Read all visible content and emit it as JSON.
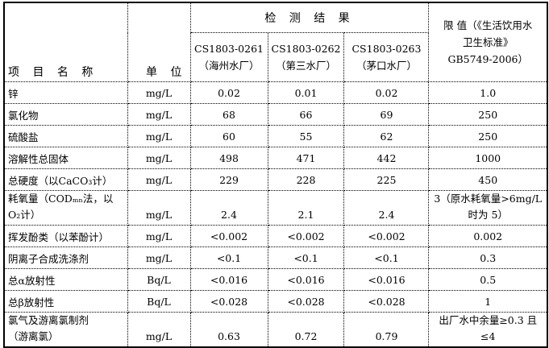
{
  "header": {
    "item": "项 目 名 称",
    "unit": "单  位",
    "results": "检 测 结 果",
    "samples": [
      {
        "code": "CS1803-0261",
        "plant": "（海州水厂）"
      },
      {
        "code": "CS1803-0262",
        "plant": "（第三水厂）"
      },
      {
        "code": "CS1803-0263",
        "plant": "（茅口水厂）"
      }
    ],
    "limit": [
      "限   值（《生活饮用水",
      "卫生标准》",
      "GB5749-2006）"
    ]
  },
  "rows": [
    {
      "name": [
        "锌"
      ],
      "unit": "mg/L",
      "values": [
        "0.02",
        "0.01",
        "0.02"
      ],
      "limit": [
        "1.0"
      ]
    },
    {
      "name": [
        "氯化物"
      ],
      "unit": "mg/L",
      "values": [
        "68",
        "66",
        "69"
      ],
      "limit": [
        "250"
      ]
    },
    {
      "name": [
        "硫酸盐"
      ],
      "unit": "mg/L",
      "values": [
        "60",
        "55",
        "62"
      ],
      "limit": [
        "250"
      ]
    },
    {
      "name": [
        "溶解性总固体"
      ],
      "unit": "mg/L",
      "values": [
        "498",
        "471",
        "442"
      ],
      "limit": [
        "1000"
      ]
    },
    {
      "name": [
        "总硬度（以CaCO₃计）"
      ],
      "unit": "mg/L",
      "values": [
        "229",
        "228",
        "225"
      ],
      "limit": [
        "450"
      ]
    },
    {
      "name": [
        "耗氧量（CODₘₙ法，以",
        "O₂计）"
      ],
      "unit": "mg/L",
      "values": [
        "2.4",
        "2.1",
        "2.4"
      ],
      "limit": [
        "3（原水耗氧量>6mg/L",
        "时为 5）"
      ]
    },
    {
      "name": [
        "挥发酚类（以苯酚计）"
      ],
      "unit": "mg/L",
      "values": [
        "<0.002",
        "<0.002",
        "<0.002"
      ],
      "limit": [
        "0.002"
      ]
    },
    {
      "name": [
        "阴离子合成洗涤剂"
      ],
      "unit": "mg/L",
      "values": [
        "<0.1",
        "<0.1",
        "<0.1"
      ],
      "limit": [
        "0.3"
      ]
    },
    {
      "name": [
        "总α放射性"
      ],
      "unit": "Bq/L",
      "values": [
        "<0.016",
        "<0.016",
        "<0.016"
      ],
      "limit": [
        "0.5"
      ]
    },
    {
      "name": [
        "总β放射性"
      ],
      "unit": "Bq/L",
      "values": [
        "<0.028",
        "<0.028",
        "<0.028"
      ],
      "limit": [
        "1"
      ]
    },
    {
      "name": [
        "氯气及游离氯制剂",
        "（游离氯）"
      ],
      "unit": "mg/L",
      "values": [
        "0.63",
        "0.72",
        "0.79"
      ],
      "limit": [
        "出厂水中余量≥0.3 且",
        "≤4"
      ]
    }
  ]
}
